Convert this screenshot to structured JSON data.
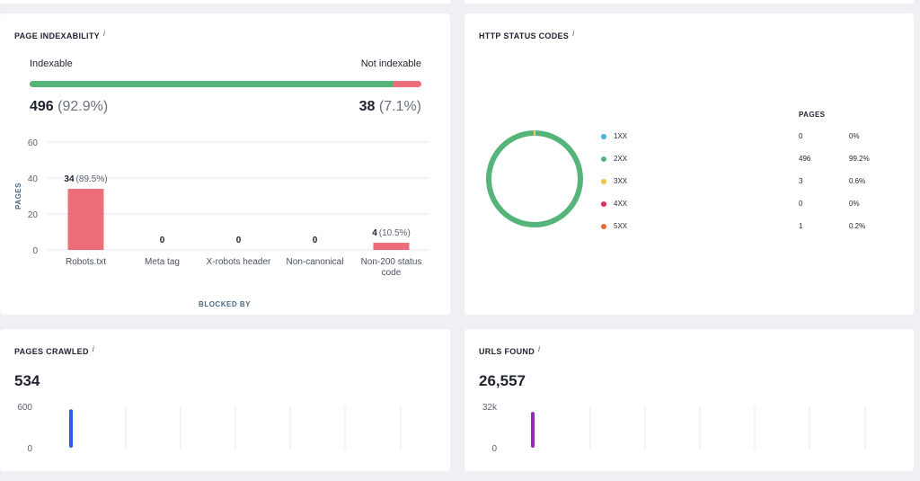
{
  "index": {
    "title": "PAGE INDEXABILITY",
    "info": "i",
    "indexable_label": "Indexable",
    "not_indexable_label": "Not indexable",
    "indexable_count": "496",
    "indexable_pct": "(92.9%)",
    "not_indexable_count": "38",
    "not_indexable_pct": "(7.1%)",
    "indexable_fraction": 0.929,
    "colors": {
      "indexable": "#55b47a",
      "not_indexable": "#eb6e7a"
    }
  },
  "chart_data": [
    {
      "type": "bar",
      "categories": [
        "Robots.txt",
        "Meta tag",
        "X-robots header",
        "Non-canonical",
        "Non-200 status code"
      ],
      "values": [
        34,
        0,
        0,
        0,
        4
      ],
      "value_labels": [
        "34",
        "0",
        "0",
        "0",
        "4"
      ],
      "pct_labels": [
        "(89.5%)",
        "",
        "",
        "",
        "(10.5%)"
      ],
      "xlabel": "BLOCKED BY",
      "ylabel": "PAGES",
      "ylim": [
        0,
        60
      ],
      "yticks": [
        "0",
        "20",
        "40",
        "60"
      ],
      "grid": true,
      "color": "#eb6e7a"
    },
    {
      "type": "pie",
      "categories": [
        "1XX",
        "2XX",
        "3XX",
        "4XX",
        "5XX"
      ],
      "values": [
        0,
        496,
        3,
        0,
        1
      ],
      "colors": [
        "#3fb6d8",
        "#55b47a",
        "#f5c242",
        "#d8315b",
        "#ee6a3a"
      ],
      "donut": true
    }
  ],
  "http": {
    "title": "HTTP STATUS CODES",
    "info": "i",
    "pages_header": "PAGES",
    "rows": [
      {
        "name": "1XX",
        "pages": "0",
        "pct": "0%",
        "color": "#3fb6d8"
      },
      {
        "name": "2XX",
        "pages": "496",
        "pct": "99.2%",
        "color": "#55b47a"
      },
      {
        "name": "3XX",
        "pages": "3",
        "pct": "0.6%",
        "color": "#f5c242"
      },
      {
        "name": "4XX",
        "pages": "0",
        "pct": "0%",
        "color": "#d8315b"
      },
      {
        "name": "5XX",
        "pages": "1",
        "pct": "0.2%",
        "color": "#ee6a3a"
      }
    ]
  },
  "crawled": {
    "title": "PAGES CRAWLED",
    "info": "i",
    "value": "534",
    "y_max_label": "600",
    "y_min_label": "0",
    "y_max": 600,
    "series_value": 534,
    "color": "#2c5fe0"
  },
  "urls": {
    "title": "URLS FOUND",
    "info": "i",
    "value": "26,557",
    "y_max_label": "32k",
    "y_min_label": "0",
    "y_max": 32000,
    "series_value": 26557,
    "color": "#8e2fb5"
  }
}
